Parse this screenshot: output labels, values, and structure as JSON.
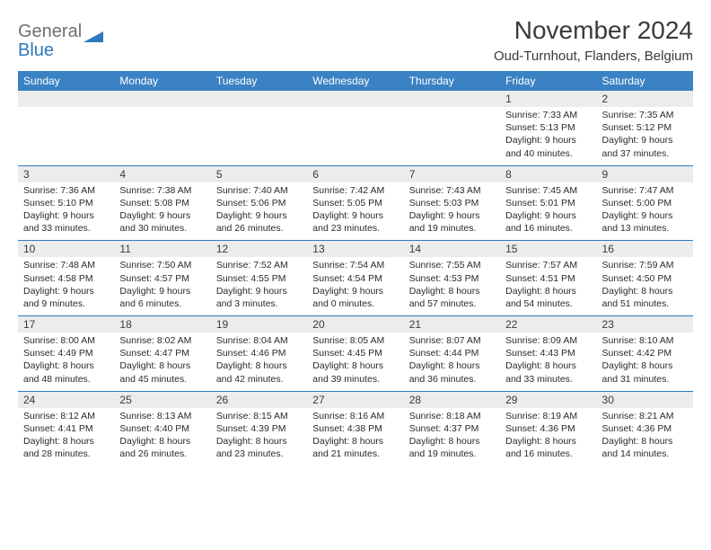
{
  "logo": {
    "line1": "General",
    "line2": "Blue"
  },
  "title": "November 2024",
  "subtitle": "Oud-Turnhout, Flanders, Belgium",
  "colors": {
    "header_bg": "#3b82c4",
    "header_text": "#ffffff",
    "daynum_bg": "#ececec",
    "week_border": "#2f78bc",
    "text": "#2a2a2a",
    "logo_blue": "#2f78bc",
    "logo_gray": "#707070",
    "background": "#ffffff"
  },
  "typography": {
    "title_fontsize": 28,
    "subtitle_fontsize": 15,
    "dayheader_fontsize": 12,
    "daynum_fontsize": 12,
    "cell_fontsize": 10.5
  },
  "day_headers": [
    "Sunday",
    "Monday",
    "Tuesday",
    "Wednesday",
    "Thursday",
    "Friday",
    "Saturday"
  ],
  "weeks": [
    [
      {
        "n": "",
        "sunrise": "",
        "sunset": "",
        "daylight": ""
      },
      {
        "n": "",
        "sunrise": "",
        "sunset": "",
        "daylight": ""
      },
      {
        "n": "",
        "sunrise": "",
        "sunset": "",
        "daylight": ""
      },
      {
        "n": "",
        "sunrise": "",
        "sunset": "",
        "daylight": ""
      },
      {
        "n": "",
        "sunrise": "",
        "sunset": "",
        "daylight": ""
      },
      {
        "n": "1",
        "sunrise": "Sunrise: 7:33 AM",
        "sunset": "Sunset: 5:13 PM",
        "daylight": "Daylight: 9 hours and 40 minutes."
      },
      {
        "n": "2",
        "sunrise": "Sunrise: 7:35 AM",
        "sunset": "Sunset: 5:12 PM",
        "daylight": "Daylight: 9 hours and 37 minutes."
      }
    ],
    [
      {
        "n": "3",
        "sunrise": "Sunrise: 7:36 AM",
        "sunset": "Sunset: 5:10 PM",
        "daylight": "Daylight: 9 hours and 33 minutes."
      },
      {
        "n": "4",
        "sunrise": "Sunrise: 7:38 AM",
        "sunset": "Sunset: 5:08 PM",
        "daylight": "Daylight: 9 hours and 30 minutes."
      },
      {
        "n": "5",
        "sunrise": "Sunrise: 7:40 AM",
        "sunset": "Sunset: 5:06 PM",
        "daylight": "Daylight: 9 hours and 26 minutes."
      },
      {
        "n": "6",
        "sunrise": "Sunrise: 7:42 AM",
        "sunset": "Sunset: 5:05 PM",
        "daylight": "Daylight: 9 hours and 23 minutes."
      },
      {
        "n": "7",
        "sunrise": "Sunrise: 7:43 AM",
        "sunset": "Sunset: 5:03 PM",
        "daylight": "Daylight: 9 hours and 19 minutes."
      },
      {
        "n": "8",
        "sunrise": "Sunrise: 7:45 AM",
        "sunset": "Sunset: 5:01 PM",
        "daylight": "Daylight: 9 hours and 16 minutes."
      },
      {
        "n": "9",
        "sunrise": "Sunrise: 7:47 AM",
        "sunset": "Sunset: 5:00 PM",
        "daylight": "Daylight: 9 hours and 13 minutes."
      }
    ],
    [
      {
        "n": "10",
        "sunrise": "Sunrise: 7:48 AM",
        "sunset": "Sunset: 4:58 PM",
        "daylight": "Daylight: 9 hours and 9 minutes."
      },
      {
        "n": "11",
        "sunrise": "Sunrise: 7:50 AM",
        "sunset": "Sunset: 4:57 PM",
        "daylight": "Daylight: 9 hours and 6 minutes."
      },
      {
        "n": "12",
        "sunrise": "Sunrise: 7:52 AM",
        "sunset": "Sunset: 4:55 PM",
        "daylight": "Daylight: 9 hours and 3 minutes."
      },
      {
        "n": "13",
        "sunrise": "Sunrise: 7:54 AM",
        "sunset": "Sunset: 4:54 PM",
        "daylight": "Daylight: 9 hours and 0 minutes."
      },
      {
        "n": "14",
        "sunrise": "Sunrise: 7:55 AM",
        "sunset": "Sunset: 4:53 PM",
        "daylight": "Daylight: 8 hours and 57 minutes."
      },
      {
        "n": "15",
        "sunrise": "Sunrise: 7:57 AM",
        "sunset": "Sunset: 4:51 PM",
        "daylight": "Daylight: 8 hours and 54 minutes."
      },
      {
        "n": "16",
        "sunrise": "Sunrise: 7:59 AM",
        "sunset": "Sunset: 4:50 PM",
        "daylight": "Daylight: 8 hours and 51 minutes."
      }
    ],
    [
      {
        "n": "17",
        "sunrise": "Sunrise: 8:00 AM",
        "sunset": "Sunset: 4:49 PM",
        "daylight": "Daylight: 8 hours and 48 minutes."
      },
      {
        "n": "18",
        "sunrise": "Sunrise: 8:02 AM",
        "sunset": "Sunset: 4:47 PM",
        "daylight": "Daylight: 8 hours and 45 minutes."
      },
      {
        "n": "19",
        "sunrise": "Sunrise: 8:04 AM",
        "sunset": "Sunset: 4:46 PM",
        "daylight": "Daylight: 8 hours and 42 minutes."
      },
      {
        "n": "20",
        "sunrise": "Sunrise: 8:05 AM",
        "sunset": "Sunset: 4:45 PM",
        "daylight": "Daylight: 8 hours and 39 minutes."
      },
      {
        "n": "21",
        "sunrise": "Sunrise: 8:07 AM",
        "sunset": "Sunset: 4:44 PM",
        "daylight": "Daylight: 8 hours and 36 minutes."
      },
      {
        "n": "22",
        "sunrise": "Sunrise: 8:09 AM",
        "sunset": "Sunset: 4:43 PM",
        "daylight": "Daylight: 8 hours and 33 minutes."
      },
      {
        "n": "23",
        "sunrise": "Sunrise: 8:10 AM",
        "sunset": "Sunset: 4:42 PM",
        "daylight": "Daylight: 8 hours and 31 minutes."
      }
    ],
    [
      {
        "n": "24",
        "sunrise": "Sunrise: 8:12 AM",
        "sunset": "Sunset: 4:41 PM",
        "daylight": "Daylight: 8 hours and 28 minutes."
      },
      {
        "n": "25",
        "sunrise": "Sunrise: 8:13 AM",
        "sunset": "Sunset: 4:40 PM",
        "daylight": "Daylight: 8 hours and 26 minutes."
      },
      {
        "n": "26",
        "sunrise": "Sunrise: 8:15 AM",
        "sunset": "Sunset: 4:39 PM",
        "daylight": "Daylight: 8 hours and 23 minutes."
      },
      {
        "n": "27",
        "sunrise": "Sunrise: 8:16 AM",
        "sunset": "Sunset: 4:38 PM",
        "daylight": "Daylight: 8 hours and 21 minutes."
      },
      {
        "n": "28",
        "sunrise": "Sunrise: 8:18 AM",
        "sunset": "Sunset: 4:37 PM",
        "daylight": "Daylight: 8 hours and 19 minutes."
      },
      {
        "n": "29",
        "sunrise": "Sunrise: 8:19 AM",
        "sunset": "Sunset: 4:36 PM",
        "daylight": "Daylight: 8 hours and 16 minutes."
      },
      {
        "n": "30",
        "sunrise": "Sunrise: 8:21 AM",
        "sunset": "Sunset: 4:36 PM",
        "daylight": "Daylight: 8 hours and 14 minutes."
      }
    ]
  ]
}
